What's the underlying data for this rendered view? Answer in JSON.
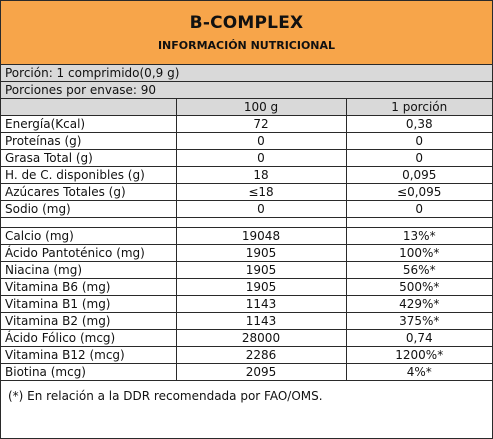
{
  "header": {
    "title": "B-COMPLEX",
    "subtitle": "INFORMACIÓN NUTRICIONAL",
    "background_color": "#f7a54a"
  },
  "serving": {
    "portion": "Porción: 1 comprimido(0,9 g)",
    "servings_per_container": "Porciones por envase: 90"
  },
  "table": {
    "columns": [
      "",
      "100 g",
      "1 porción"
    ],
    "header_color": "#d9d9d9",
    "section1": [
      {
        "label": "Energía(Kcal)",
        "per100": "72",
        "perPortion": "0,38"
      },
      {
        "label": "Proteínas (g)",
        "per100": "0",
        "perPortion": "0"
      },
      {
        "label": "Grasa Total (g)",
        "per100": "0",
        "perPortion": "0"
      },
      {
        "label": "H. de C. disponibles (g)",
        "per100": "18",
        "perPortion": "0,095"
      },
      {
        "label": "Azúcares Totales (g)",
        "per100": "≤18",
        "perPortion": "≤0,095"
      },
      {
        "label": "Sodio (mg)",
        "per100": "0",
        "perPortion": "0"
      }
    ],
    "section2": [
      {
        "label": "Calcio (mg)",
        "per100": "19048",
        "perPortion": "13%*"
      },
      {
        "label": "Ácido Pantoténico (mg)",
        "per100": "1905",
        "perPortion": "100%*"
      },
      {
        "label": "Niacina (mg)",
        "per100": "1905",
        "perPortion": "56%*"
      },
      {
        "label": "Vitamina B6 (mg)",
        "per100": "1905",
        "perPortion": "500%*"
      },
      {
        "label": "Vitamina B1 (mg)",
        "per100": "1143",
        "perPortion": "429%*"
      },
      {
        "label": "Vitamina B2 (mg)",
        "per100": "1143",
        "perPortion": "375%*"
      },
      {
        "label": "Ácido Fólico (mcg)",
        "per100": "28000",
        "perPortion": "0,74"
      },
      {
        "label": "Vitamina B12 (mcg)",
        "per100": "2286",
        "perPortion": "1200%*"
      },
      {
        "label": "Biotina (mcg)",
        "per100": "2095",
        "perPortion": "4%*"
      }
    ]
  },
  "footnote": "(*) En relación a la DDR recomendada por FAO/OMS."
}
